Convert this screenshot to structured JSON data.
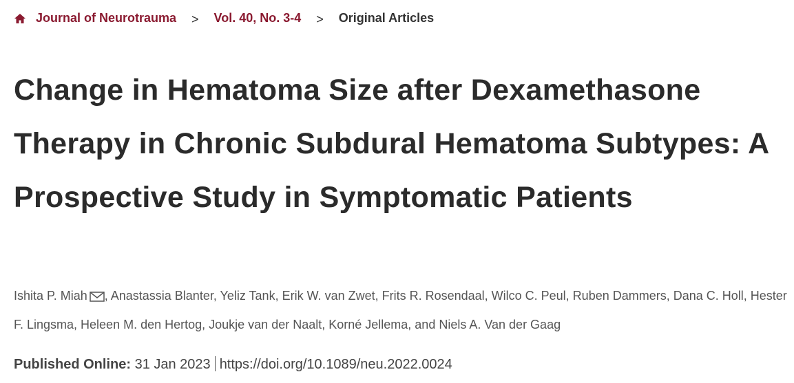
{
  "breadcrumb": [
    "Journal of Neurotrauma",
    "Vol. 40, No. 3-4",
    "Original Articles"
  ],
  "breadcrumb_separator": ">",
  "title": "Change in Hematoma Size after Dexamethasone Therapy in Chronic Subdural Hematoma Subtypes: A Prospective Study in Symptomatic Patients",
  "authors": {
    "first": "Ishita P. Miah",
    "rest": ", Anastassia Blanter, Yeliz Tank, Erik W. van Zwet, Frits R. Rosendaal, Wilco C. Peul, Ruben Dammers, Dana C. Holl, Hester F. Lingsma, Heleen M. den Hertog, Joukje van der Naalt, Korné Jellema, and Niels A. Van der Gaag"
  },
  "published": {
    "label": "Published Online:",
    "date": "31 Jan 2023",
    "doi": "https://doi.org/10.1089/neu.2022.0024"
  }
}
